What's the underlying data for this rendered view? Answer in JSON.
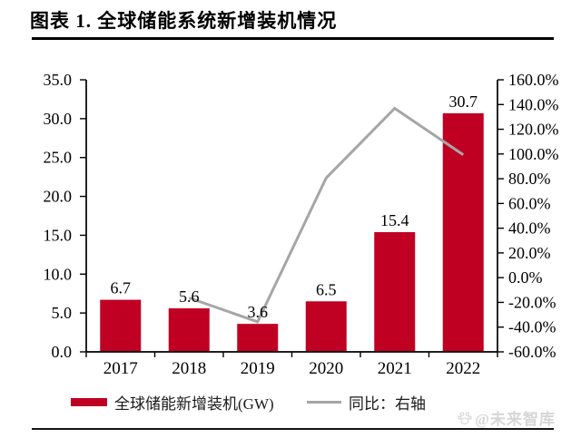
{
  "title": "图表 1. 全球储能系统新增装机情况",
  "legend": {
    "bar_label": "全球储能新增装机(GW)",
    "line_label": "同比：右轴"
  },
  "watermark": {
    "text": "@未来智库"
  },
  "colors": {
    "bar": "#c00023",
    "line": "#a6a6a6",
    "axis": "#000000",
    "watermark": "#d6d6d6"
  },
  "chart_data": {
    "type": "bar",
    "title": "全球储能系统新增装机情况",
    "categories": [
      "2017",
      "2018",
      "2019",
      "2020",
      "2021",
      "2022"
    ],
    "series": [
      {
        "name": "全球储能新增装机(GW)",
        "type": "bar",
        "axis": "left",
        "values": [
          6.7,
          5.6,
          3.6,
          6.5,
          15.4,
          30.7
        ],
        "value_labels": [
          "6.7",
          "5.6",
          "3.6",
          "6.5",
          "15.4",
          "30.7"
        ]
      },
      {
        "name": "同比：右轴",
        "type": "line",
        "axis": "right",
        "values": [
          null,
          -16.4,
          -35.7,
          80.6,
          136.9,
          99.4
        ]
      }
    ],
    "left_axis": {
      "min": 0,
      "max": 35,
      "step": 5,
      "tick_labels": [
        "35.0",
        "30.0",
        "25.0",
        "20.0",
        "15.0",
        "10.0",
        "5.0",
        "0.0"
      ]
    },
    "right_axis": {
      "min": -60,
      "max": 160,
      "step": 20,
      "tick_labels": [
        "160.0%",
        "140.0%",
        "120.0%",
        "100.0%",
        "80.0%",
        "60.0%",
        "40.0%",
        "20.0%",
        "0.0%",
        "-20.0%",
        "-40.0%",
        "-60.0%"
      ]
    },
    "grid": false,
    "legend_position": "bottom"
  }
}
